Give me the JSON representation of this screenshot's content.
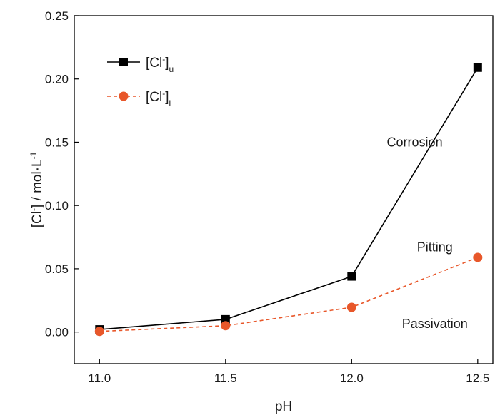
{
  "chart_data": {
    "type": "line",
    "title": "",
    "xlabel": "pH",
    "ylabel": "[Cl⁻] / mol·L⁻¹",
    "ylabel_parts": {
      "base": "[Cl",
      "sup1": "-",
      "mid": "] / mol·L",
      "sup2": "-1"
    },
    "xlim": [
      10.9,
      12.56
    ],
    "ylim": [
      -0.025,
      0.25
    ],
    "x_ticks": [
      11.0,
      11.5,
      12.0,
      12.5
    ],
    "x_tick_labels": [
      "11.0",
      "11.5",
      "12.0",
      "12.5"
    ],
    "y_ticks": [
      0.0,
      0.05,
      0.1,
      0.15,
      0.2,
      0.25
    ],
    "y_tick_labels": [
      "0.00",
      "0.05",
      "0.10",
      "0.15",
      "0.20",
      "0.25"
    ],
    "grid": false,
    "legend_position": "top-left",
    "series": [
      {
        "name": "[Cl⁻]u",
        "legend_base": "[Cl",
        "legend_sup": "-",
        "legend_close": "]",
        "legend_sub": "u",
        "x": [
          11.0,
          11.5,
          12.0,
          12.5
        ],
        "values": [
          0.002,
          0.01,
          0.044,
          0.209
        ],
        "color": "#000000",
        "line_style": "solid",
        "marker": "square"
      },
      {
        "name": "[Cl⁻]l",
        "legend_base": "[Cl",
        "legend_sup": "-",
        "legend_close": "]",
        "legend_sub": "l",
        "x": [
          11.0,
          11.5,
          12.0,
          12.5
        ],
        "values": [
          0.0005,
          0.005,
          0.0195,
          0.059
        ],
        "color": "#e8572a",
        "line_style": "dashed",
        "marker": "circle"
      }
    ],
    "annotations": [
      {
        "text": "Corrosion",
        "x": 12.25,
        "y": 0.15
      },
      {
        "text": "Pitting",
        "x": 12.33,
        "y": 0.067
      },
      {
        "text": "Passivation",
        "x": 12.33,
        "y": 0.0065
      }
    ]
  }
}
